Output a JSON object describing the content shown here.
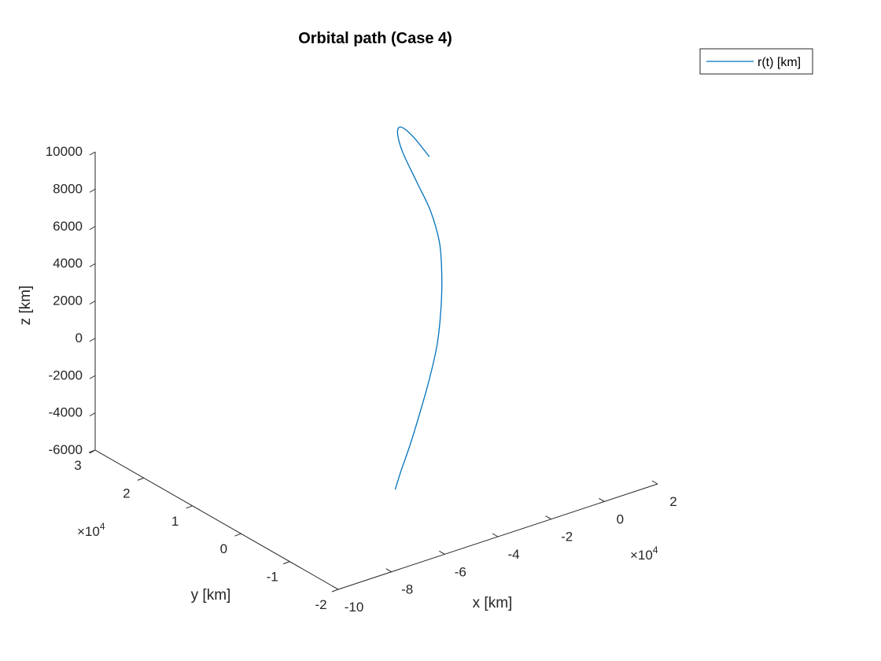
{
  "chart_data": {
    "type": "line",
    "title": "Orbital path (Case 4)",
    "xlabel": "x [km]",
    "ylabel": "y [km]",
    "zlabel": "z [km]",
    "x_ticks": [
      -10,
      -8,
      -6,
      -4,
      -2,
      0,
      2
    ],
    "y_ticks": [
      -2,
      -1,
      0,
      1,
      2,
      3
    ],
    "z_ticks": [
      -6000,
      -4000,
      -2000,
      0,
      2000,
      4000,
      6000,
      8000,
      10000
    ],
    "x_tick_labels": [
      "-10",
      "-8",
      "-6",
      "-4",
      "-2",
      "0",
      "2"
    ],
    "y_tick_labels": [
      "-2",
      "-1",
      "0",
      "1",
      "2",
      "3"
    ],
    "z_tick_labels": [
      "-6000",
      "-4000",
      "-2000",
      "0",
      "2000",
      "4000",
      "6000",
      "8000",
      "10000"
    ],
    "x_exponent": "×10",
    "x_exponent_power": "4",
    "y_exponent": "×10",
    "y_exponent_power": "4",
    "x_scale": 10000,
    "y_scale": 10000,
    "xlim": [
      -100000,
      20000
    ],
    "ylim": [
      -20000,
      30000
    ],
    "zlim": [
      -6000,
      10000
    ],
    "legend": {
      "entries": [
        "r(t) [km]"
      ],
      "position": "top-right"
    },
    "series": [
      {
        "name": "r(t) [km]",
        "color": "#0072BD",
        "points": [
          {
            "x": 7740,
            "y": 20250,
            "z": 6120
          },
          {
            "x": -3130,
            "y": 17650,
            "z": 8100
          },
          {
            "x": -15370,
            "y": 13400,
            "z": 9820
          },
          {
            "x": -27760,
            "y": 7350,
            "z": 11000
          },
          {
            "x": -36710,
            "y": 1460,
            "z": 11310
          },
          {
            "x": -44440,
            "y": -5660,
            "z": 11130
          },
          {
            "x": -48980,
            "y": -11010,
            "z": 10580
          },
          {
            "x": -51990,
            "y": -14520,
            "z": 9550
          },
          {
            "x": -53070,
            "y": -15600,
            "z": 8090
          },
          {
            "x": -53030,
            "y": -15450,
            "z": 6320
          },
          {
            "x": -52160,
            "y": -14240,
            "z": 4170
          },
          {
            "x": -50280,
            "y": -11750,
            "z": 1930
          },
          {
            "x": -48010,
            "y": -8540,
            "z": -510
          },
          {
            "x": -44920,
            "y": -4660,
            "z": -3100
          },
          {
            "x": -41610,
            "y": -960,
            "z": -5230
          },
          {
            "x": -37720,
            "y": 2380,
            "z": -6920
          }
        ]
      }
    ]
  }
}
